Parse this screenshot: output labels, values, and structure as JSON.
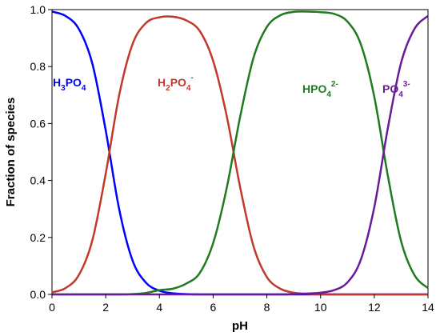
{
  "chart_data": {
    "type": "line",
    "title": "",
    "xlabel": "pH",
    "ylabel": "Fraction of species",
    "xlim": [
      0,
      14
    ],
    "ylim": [
      0,
      1
    ],
    "x_ticks": [
      "0",
      "2",
      "4",
      "6",
      "8",
      "10",
      "12",
      "14"
    ],
    "y_ticks": [
      "0.0",
      "0.2",
      "0.4",
      "0.6",
      "0.8",
      "1.0"
    ],
    "grid": false,
    "legend": "none",
    "x": [
      0,
      0.5,
      1,
      1.5,
      2,
      2.5,
      3,
      3.5,
      4,
      4.5,
      5,
      5.5,
      6,
      6.5,
      7,
      7.5,
      8,
      8.5,
      9,
      9.5,
      10,
      10.5,
      11,
      11.5,
      12,
      12.5,
      13,
      13.5,
      14
    ],
    "series": [
      {
        "color": "#0000ff",
        "values": [
          0.993,
          0.978,
          0.932,
          0.811,
          0.576,
          0.3,
          0.119,
          0.041,
          0.013,
          0.004,
          0.001,
          0.0,
          0.0,
          0.0,
          0.0,
          0.0,
          0.0,
          0.0,
          0.0,
          0.0,
          0.0,
          0.0,
          0.0,
          0.0,
          0.0,
          0.0,
          0.0,
          0.0,
          0.0
        ]
      },
      {
        "color": "#c0392b",
        "values": [
          0.007,
          0.022,
          0.068,
          0.189,
          0.424,
          0.699,
          0.879,
          0.953,
          0.973,
          0.975,
          0.962,
          0.925,
          0.82,
          0.629,
          0.379,
          0.17,
          0.061,
          0.02,
          0.006,
          0.002,
          0.001,
          0.0,
          0.0,
          0.0,
          0.0,
          0.0,
          0.0,
          0.0,
          0.0
        ]
      },
      {
        "color": "#1e7b1e",
        "values": [
          0.0,
          0.0,
          0.0,
          0.0,
          0.0,
          0.0,
          0.001,
          0.005,
          0.015,
          0.02,
          0.038,
          0.075,
          0.18,
          0.371,
          0.621,
          0.83,
          0.939,
          0.98,
          0.992,
          0.993,
          0.991,
          0.985,
          0.958,
          0.878,
          0.694,
          0.419,
          0.186,
          0.067,
          0.022
        ]
      },
      {
        "color": "#6a1b9a",
        "values": [
          0.0,
          0.0,
          0.0,
          0.0,
          0.0,
          0.0,
          0.0,
          0.0,
          0.0,
          0.0,
          0.0,
          0.0,
          0.0,
          0.0,
          0.0,
          0.0,
          0.0,
          0.0,
          0.001,
          0.003,
          0.006,
          0.015,
          0.042,
          0.122,
          0.306,
          0.581,
          0.814,
          0.933,
          0.978
        ]
      }
    ],
    "labels": [
      {
        "color": "#0000ff",
        "base1": "H",
        "sub1": "3",
        "base2": "PO",
        "sub2": "4",
        "sup": ""
      },
      {
        "color": "#c0392b",
        "base1": "H",
        "sub1": "2",
        "base2": "PO",
        "sub2": "4",
        "sup": "-"
      },
      {
        "color": "#1e7b1e",
        "base1": "HPO",
        "sub1": "4",
        "base2": "",
        "sub2": "",
        "sup": "2-"
      },
      {
        "color": "#6a1b9a",
        "base1": "PO",
        "sub1": "4",
        "base2": "",
        "sub2": "",
        "sup": "3-"
      }
    ]
  }
}
